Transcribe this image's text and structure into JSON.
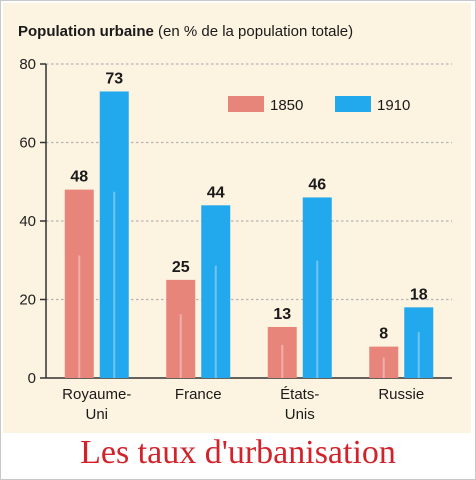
{
  "chart_data": {
    "type": "bar",
    "title": "Population urbaine",
    "subtitle": "(en % de la population totale)",
    "categories": [
      "Royaume-\nUni",
      "France",
      "États-\nUnis",
      "Russie"
    ],
    "series": [
      {
        "name": "1850",
        "values": [
          48,
          25,
          13,
          8
        ],
        "color": "#e8857a"
      },
      {
        "name": "1910",
        "values": [
          73,
          44,
          46,
          18
        ],
        "color": "#22a8ec"
      }
    ],
    "ylim": [
      0,
      80
    ],
    "yticks": [
      "0",
      "20",
      "40",
      "60",
      "80"
    ],
    "grid": true,
    "legend": "top-right"
  },
  "caption": "Les taux d'urbanisation",
  "colors": {
    "panel_background": "#fdf3e1",
    "grid": "#b5b5b5",
    "caption": "#d2232a"
  }
}
